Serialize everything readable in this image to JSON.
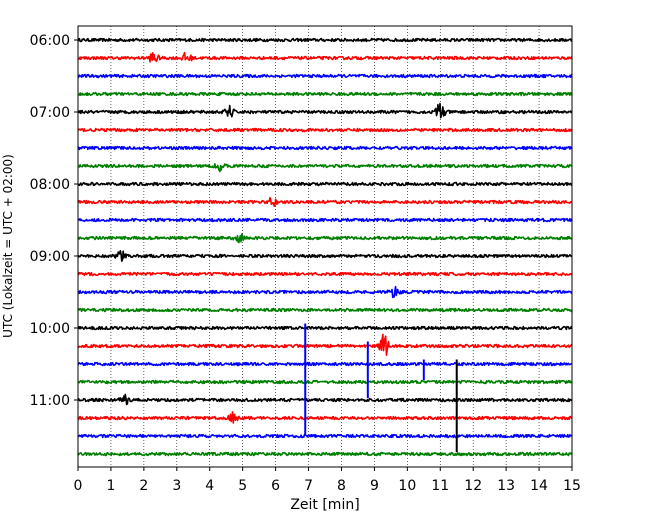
{
  "chart_data": {
    "type": "line",
    "title": "",
    "xlabel": "Zeit  [min]",
    "ylabel": "UTC (Lokalzeit = UTC + 02:00)",
    "xlim": [
      0,
      15
    ],
    "x_ticks": [
      0,
      1,
      2,
      3,
      4,
      5,
      6,
      7,
      8,
      9,
      10,
      11,
      12,
      13,
      14,
      15
    ],
    "y_tick_labels": [
      "06:00",
      "07:00",
      "08:00",
      "09:00",
      "10:00",
      "11:00"
    ],
    "grid": "vertical dotted lines at each minute",
    "trace_interval_minutes": 15,
    "color_cycle": [
      "#000000",
      "#ff0000",
      "#0000ff",
      "#008000"
    ],
    "traces": [
      {
        "start": "06:00",
        "color": "#000000",
        "events": []
      },
      {
        "start": "06:15",
        "color": "#ff0000",
        "events": [
          {
            "t": 2.3,
            "amp": 0.35
          },
          {
            "t": 3.3,
            "amp": 0.3
          }
        ]
      },
      {
        "start": "06:30",
        "color": "#0000ff",
        "events": []
      },
      {
        "start": "06:45",
        "color": "#008000",
        "events": []
      },
      {
        "start": "07:00",
        "color": "#000000",
        "events": [
          {
            "t": 4.6,
            "amp": 0.3
          },
          {
            "t": 11.0,
            "amp": 0.6
          }
        ]
      },
      {
        "start": "07:15",
        "color": "#ff0000",
        "events": []
      },
      {
        "start": "07:30",
        "color": "#0000ff",
        "events": []
      },
      {
        "start": "07:45",
        "color": "#008000",
        "events": [
          {
            "t": 4.3,
            "amp": 0.25
          }
        ]
      },
      {
        "start": "08:00",
        "color": "#000000",
        "events": []
      },
      {
        "start": "08:15",
        "color": "#ff0000",
        "events": [
          {
            "t": 5.9,
            "amp": 0.25
          }
        ]
      },
      {
        "start": "08:30",
        "color": "#0000ff",
        "events": []
      },
      {
        "start": "08:45",
        "color": "#008000",
        "events": [
          {
            "t": 4.9,
            "amp": 0.25
          }
        ]
      },
      {
        "start": "09:00",
        "color": "#000000",
        "events": [
          {
            "t": 1.3,
            "amp": 0.3
          }
        ]
      },
      {
        "start": "09:15",
        "color": "#ff0000",
        "events": []
      },
      {
        "start": "09:30",
        "color": "#0000ff",
        "events": [
          {
            "t": 9.6,
            "amp": 0.3
          }
        ]
      },
      {
        "start": "09:45",
        "color": "#008000",
        "events": []
      },
      {
        "start": "10:00",
        "color": "#000000",
        "events": []
      },
      {
        "start": "10:15",
        "color": "#ff0000",
        "events": [
          {
            "t": 9.3,
            "amp": 0.7
          }
        ]
      },
      {
        "start": "10:30",
        "color": "#0000ff",
        "events": []
      },
      {
        "start": "10:45",
        "color": "#008000",
        "events": []
      },
      {
        "start": "11:00",
        "color": "#000000",
        "events": [
          {
            "t": 1.4,
            "amp": 0.3
          }
        ]
      },
      {
        "start": "11:15",
        "color": "#ff0000",
        "events": [
          {
            "t": 4.7,
            "amp": 0.3
          }
        ]
      },
      {
        "start": "11:30",
        "color": "#0000ff",
        "events": []
      },
      {
        "start": "11:45",
        "color": "#008000",
        "events": []
      }
    ],
    "spikes": [
      {
        "t": 6.9,
        "from": "10:00",
        "to": "11:15",
        "color": "#0000ff"
      },
      {
        "t": 8.8,
        "from": "10:15",
        "to": "10:45",
        "color": "#0000ff"
      },
      {
        "t": 10.5,
        "from": "10:30",
        "to": "10:30",
        "color": "#0000ff"
      },
      {
        "t": 11.5,
        "from": "10:30",
        "to": "11:30",
        "color": "#000000"
      }
    ]
  }
}
